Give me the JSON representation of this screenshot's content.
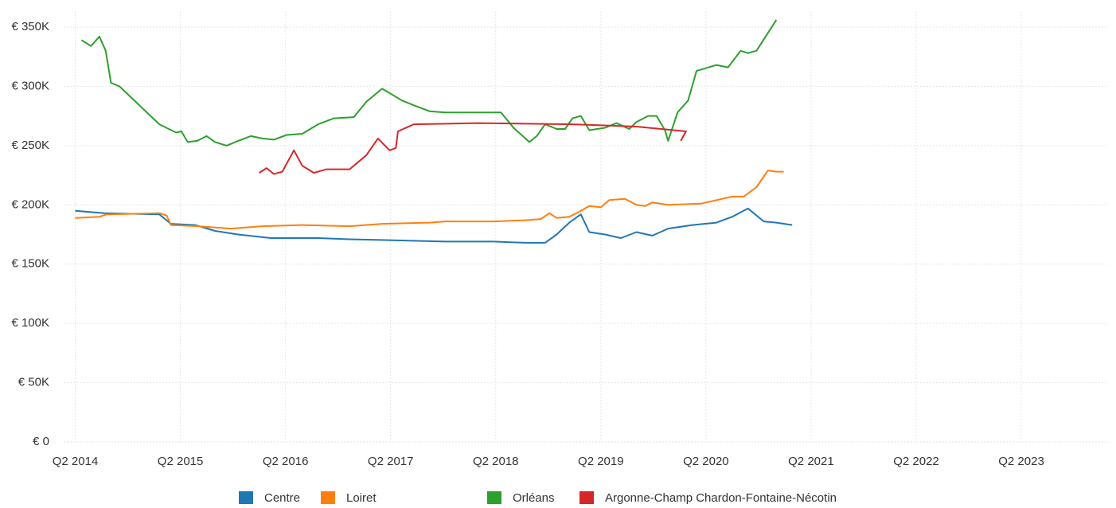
{
  "chart_data": {
    "type": "line",
    "ylim": [
      0,
      350000
    ],
    "yticks": [
      {
        "value": 0,
        "label": "€ 0"
      },
      {
        "value": 50000,
        "label": "€ 50K"
      },
      {
        "value": 100000,
        "label": "€ 100K"
      },
      {
        "value": 150000,
        "label": "€ 150K"
      },
      {
        "value": 200000,
        "label": "€ 200K"
      },
      {
        "value": 250000,
        "label": "€ 250K"
      },
      {
        "value": 300000,
        "label": "€ 300K"
      },
      {
        "value": 350000,
        "label": "€ 350K"
      }
    ],
    "xlim": [
      2014.14,
      2024.06
    ],
    "xticks": [
      {
        "value": 2014.25,
        "label": "Q2 2014"
      },
      {
        "value": 2015.25,
        "label": "Q2 2015"
      },
      {
        "value": 2016.25,
        "label": "Q2 2016"
      },
      {
        "value": 2017.25,
        "label": "Q2 2017"
      },
      {
        "value": 2018.25,
        "label": "Q2 2018"
      },
      {
        "value": 2019.25,
        "label": "Q2 2019"
      },
      {
        "value": 2020.25,
        "label": "Q2 2020"
      },
      {
        "value": 2021.25,
        "label": "Q2 2021"
      },
      {
        "value": 2022.25,
        "label": "Q2 2022"
      },
      {
        "value": 2023.25,
        "label": "Q2 2023"
      }
    ],
    "grid": true,
    "legend": "bottom",
    "series": [
      {
        "name": "Centre",
        "color": "#1f77b4",
        "x": [
          2014.25,
          2014.52,
          2015.05,
          2015.16,
          2015.39,
          2015.58,
          2015.8,
          2016.11,
          2016.56,
          2016.86,
          2017.32,
          2017.77,
          2018.23,
          2018.53,
          2018.72,
          2018.83,
          2018.95,
          2019.06,
          2019.14,
          2019.29,
          2019.44,
          2019.59,
          2019.74,
          2019.89,
          2020.12,
          2020.35,
          2020.5,
          2020.65,
          2020.8,
          2020.92,
          2021.07
        ],
        "values": [
          195000,
          193000,
          192000,
          184000,
          183000,
          178000,
          175000,
          172000,
          172000,
          171000,
          170000,
          169000,
          169000,
          168000,
          168000,
          175000,
          185000,
          192000,
          177000,
          175000,
          172000,
          177000,
          174000,
          180000,
          183000,
          185000,
          190000,
          197000,
          186000,
          185000,
          183000
        ]
      },
      {
        "name": "Loiret",
        "color": "#ff7f0e",
        "x": [
          2014.25,
          2014.48,
          2014.55,
          2015.05,
          2015.12,
          2015.16,
          2015.42,
          2015.73,
          2016.03,
          2016.41,
          2016.86,
          2017.17,
          2017.62,
          2017.77,
          2018.23,
          2018.53,
          2018.68,
          2018.76,
          2018.83,
          2018.95,
          2019.02,
          2019.14,
          2019.25,
          2019.33,
          2019.48,
          2019.59,
          2019.67,
          2019.74,
          2019.89,
          2020.2,
          2020.5,
          2020.61,
          2020.73,
          2020.84,
          2020.92,
          2020.99
        ],
        "values": [
          189000,
          190000,
          192000,
          193000,
          191000,
          183000,
          182000,
          180000,
          182000,
          183000,
          182000,
          184000,
          185000,
          186000,
          186000,
          187000,
          188000,
          193000,
          189000,
          190000,
          193000,
          199000,
          198000,
          204000,
          205000,
          200000,
          199000,
          202000,
          200000,
          201000,
          207000,
          207000,
          215000,
          229000,
          228000,
          228000
        ]
      },
      {
        "name": "Orléans",
        "color": "#2ca02c",
        "x": [
          2014.31,
          2014.4,
          2014.48,
          2014.54,
          2014.59,
          2014.67,
          2015.05,
          2015.21,
          2015.26,
          2015.32,
          2015.41,
          2015.5,
          2015.58,
          2015.69,
          2015.8,
          2015.92,
          2016.03,
          2016.14,
          2016.26,
          2016.41,
          2016.56,
          2016.71,
          2016.9,
          2017.02,
          2017.17,
          2017.36,
          2017.47,
          2017.62,
          2017.77,
          2018.3,
          2018.42,
          2018.57,
          2018.64,
          2018.72,
          2018.83,
          2018.91,
          2018.98,
          2019.06,
          2019.14,
          2019.29,
          2019.4,
          2019.52,
          2019.59,
          2019.7,
          2019.78,
          2019.86,
          2019.89,
          2019.98,
          2020.08,
          2020.16,
          2020.35,
          2020.46,
          2020.58,
          2020.65,
          2020.73,
          2020.92
        ],
        "values": [
          339000,
          334000,
          342000,
          330000,
          303000,
          300000,
          268000,
          261000,
          262000,
          253000,
          254000,
          258000,
          253000,
          250000,
          254000,
          258000,
          256000,
          255000,
          259000,
          260000,
          268000,
          273000,
          274000,
          287000,
          298000,
          288000,
          284000,
          279000,
          278000,
          278000,
          265000,
          253000,
          258000,
          268000,
          264000,
          264000,
          273000,
          275000,
          263000,
          265000,
          269000,
          264000,
          270000,
          275000,
          275000,
          263000,
          254000,
          278000,
          288000,
          313000,
          318000,
          316000,
          330000,
          328000,
          330000,
          356000
        ]
      },
      {
        "name": "Argonne-Champ Chardon-Fontaine-Nécotin",
        "color": "#d62728",
        "x": [
          2016.0,
          2016.07,
          2016.14,
          2016.22,
          2016.33,
          2016.41,
          2016.52,
          2016.64,
          2016.86,
          2017.02,
          2017.13,
          2017.24,
          2017.3,
          2017.32,
          2017.47,
          2018.08,
          2018.98,
          2019.59,
          2020.06,
          2020.01
        ],
        "values": [
          227000,
          231000,
          226000,
          228000,
          246000,
          233000,
          227000,
          230000,
          230000,
          242000,
          256000,
          246000,
          248000,
          262000,
          268000,
          269000,
          268000,
          266000,
          262000,
          254000
        ]
      }
    ]
  }
}
